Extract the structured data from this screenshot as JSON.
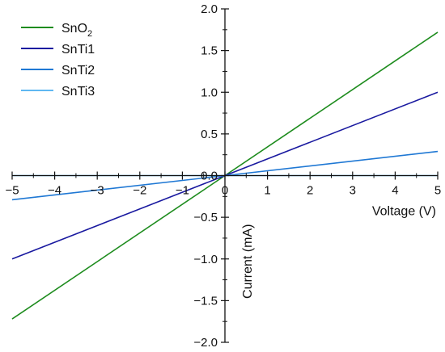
{
  "chart_data": {
    "type": "line",
    "xlabel": "Voltage (V)",
    "ylabel": "Current (mA)",
    "xlim": [
      -5,
      5
    ],
    "ylim": [
      -2.0,
      2.0
    ],
    "x_ticks": [
      -5,
      -4,
      -3,
      -2,
      -1,
      0,
      1,
      2,
      3,
      4,
      5
    ],
    "x_tick_labels": [
      "−5",
      "−4",
      "−3",
      "−2",
      "−1",
      "0",
      "1",
      "2",
      "3",
      "4",
      "5"
    ],
    "y_ticks": [
      2.0,
      1.5,
      1.0,
      0.5,
      0.0,
      -0.5,
      -1.0,
      -1.5,
      -2.0
    ],
    "y_tick_labels": [
      "2.0",
      "1.5",
      "1.0",
      "0.5",
      "0.0",
      "−0.5",
      "−1.0",
      "−1.5",
      "−2.0"
    ],
    "grid": false,
    "legend_position": "top-left",
    "series": [
      {
        "name": "SnO",
        "name_subscript": "2",
        "color": "#1e8c1e",
        "x": [
          -5,
          0,
          5
        ],
        "y": [
          -1.72,
          0,
          1.72
        ]
      },
      {
        "name": "SnTi1",
        "color": "#1a1aa0",
        "x": [
          -5,
          0,
          5
        ],
        "y": [
          -1.0,
          0,
          1.0
        ]
      },
      {
        "name": "SnTi2",
        "color": "#1f78d4",
        "x": [
          -5,
          0,
          5
        ],
        "y": [
          -0.29,
          0,
          0.29
        ]
      },
      {
        "name": "SnTi3",
        "color": "#5fb8f2",
        "x": [
          -5,
          0,
          5
        ],
        "y": [
          0.0,
          0,
          0.0
        ]
      }
    ]
  }
}
